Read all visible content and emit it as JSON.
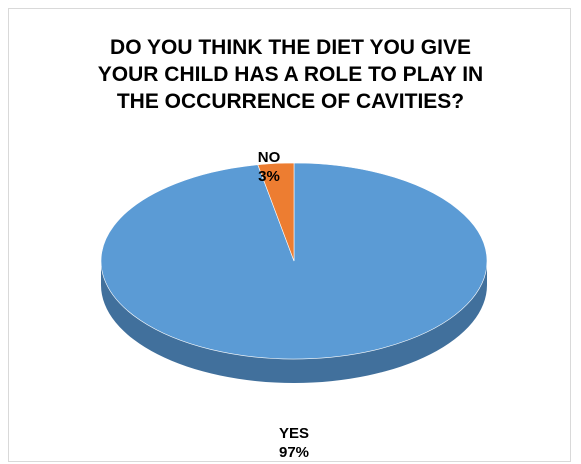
{
  "chart_data": {
    "type": "pie",
    "title_lines": [
      "DO YOU THINK THE DIET YOU GIVE",
      "YOUR CHILD HAS A ROLE TO PLAY IN",
      "THE OCCURRENCE OF CAVITIES?"
    ],
    "slices": [
      {
        "label": "YES",
        "value": 97,
        "display": "97%",
        "color": "#5b9bd5",
        "side_color": "#41709c"
      },
      {
        "label": "NO",
        "value": 3,
        "display": "3%",
        "color": "#ed7d31",
        "side_color": "#ae5a21"
      }
    ],
    "style": "3d"
  }
}
